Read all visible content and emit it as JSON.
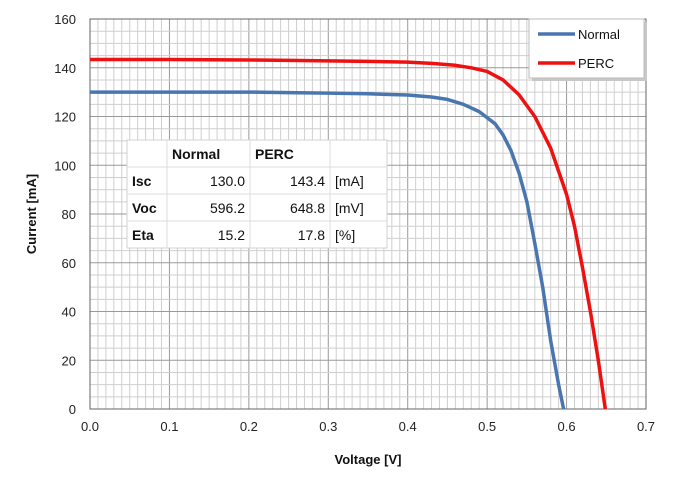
{
  "chart_data": {
    "type": "line",
    "xlabel": "Voltage [V]",
    "ylabel": "Current [mA]",
    "xlim": [
      0,
      0.7
    ],
    "ylim": [
      0,
      160
    ],
    "x_ticks": [
      "0.0",
      "0.1",
      "0.2",
      "0.3",
      "0.4",
      "0.5",
      "0.6",
      "0.7"
    ],
    "y_ticks": [
      "0",
      "20",
      "40",
      "60",
      "80",
      "100",
      "120",
      "140",
      "160"
    ],
    "grid": "on (major and minor)",
    "legend_position": "top-right",
    "series": [
      {
        "name": "Normal",
        "color": "#4a76b0",
        "points": [
          [
            0.0,
            130.0
          ],
          [
            0.05,
            130.0
          ],
          [
            0.1,
            130.0
          ],
          [
            0.15,
            130.0
          ],
          [
            0.2,
            130.0
          ],
          [
            0.25,
            129.8
          ],
          [
            0.3,
            129.6
          ],
          [
            0.35,
            129.3
          ],
          [
            0.4,
            128.8
          ],
          [
            0.43,
            128.0
          ],
          [
            0.45,
            127.0
          ],
          [
            0.47,
            125.0
          ],
          [
            0.49,
            122.0
          ],
          [
            0.51,
            117.0
          ],
          [
            0.52,
            112.5
          ],
          [
            0.53,
            106.0
          ],
          [
            0.54,
            97.0
          ],
          [
            0.55,
            85.0
          ],
          [
            0.56,
            68.0
          ],
          [
            0.57,
            50.0
          ],
          [
            0.58,
            28.0
          ],
          [
            0.59,
            10.0
          ],
          [
            0.5962,
            0.0
          ]
        ]
      },
      {
        "name": "PERC",
        "color": "#ee1111",
        "points": [
          [
            0.0,
            143.4
          ],
          [
            0.05,
            143.4
          ],
          [
            0.1,
            143.4
          ],
          [
            0.15,
            143.3
          ],
          [
            0.2,
            143.2
          ],
          [
            0.25,
            143.0
          ],
          [
            0.3,
            142.8
          ],
          [
            0.35,
            142.6
          ],
          [
            0.4,
            142.3
          ],
          [
            0.43,
            141.8
          ],
          [
            0.46,
            141.0
          ],
          [
            0.48,
            140.0
          ],
          [
            0.5,
            138.5
          ],
          [
            0.52,
            135.0
          ],
          [
            0.54,
            129.0
          ],
          [
            0.56,
            120.0
          ],
          [
            0.58,
            107.0
          ],
          [
            0.6,
            88.0
          ],
          [
            0.61,
            75.0
          ],
          [
            0.62,
            58.0
          ],
          [
            0.63,
            40.0
          ],
          [
            0.64,
            20.0
          ],
          [
            0.6488,
            0.0
          ]
        ]
      }
    ],
    "table": {
      "headers": [
        "",
        "Normal",
        "PERC",
        ""
      ],
      "rows": [
        [
          "Isc",
          "130.0",
          "143.4",
          "[mA]"
        ],
        [
          "Voc",
          "596.2",
          "648.8",
          "[mV]"
        ],
        [
          "Eta",
          "15.2",
          "17.8",
          "[%]"
        ]
      ]
    }
  }
}
